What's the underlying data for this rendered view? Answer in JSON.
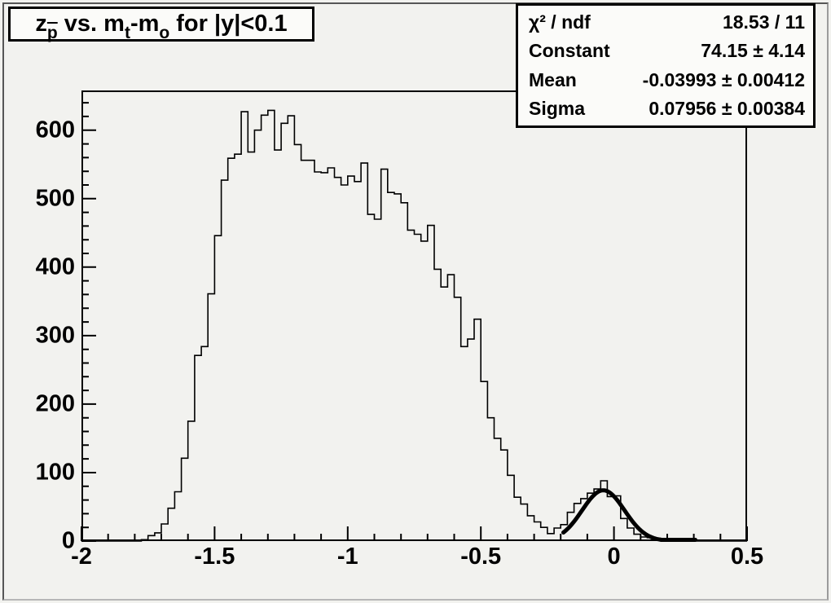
{
  "canvas": {
    "background": "#f2f2ef",
    "box_background": "#fbfbf9",
    "line_color": "#000000"
  },
  "title_box": {
    "text": "z_pbar vs. m_t-m_o for |y|<0.1",
    "segments": [
      {
        "text": "z"
      },
      {
        "text": "p",
        "sub": true,
        "overline": true
      },
      {
        "text": " vs. m"
      },
      {
        "text": "t",
        "sub": true
      },
      {
        "text": "-m"
      },
      {
        "text": "o",
        "sub": true
      },
      {
        "text": " for |y|<0.1"
      }
    ]
  },
  "stats_box": {
    "rows": [
      {
        "label": "χ² / ndf",
        "value": "18.53 / 11"
      },
      {
        "label": "Constant",
        "value": "74.15 ± 4.14"
      },
      {
        "label": "Mean",
        "value": "-0.03993 ± 0.00412"
      },
      {
        "label": "Sigma",
        "value": "0.07956 ± 0.00384"
      }
    ]
  },
  "chart_data": {
    "type": "histogram",
    "title": "z_pbar vs. m_t-m_o for |y|<0.1",
    "xlabel": "",
    "ylabel": "",
    "xlim": [
      -2,
      0.5
    ],
    "ylim": [
      0,
      658
    ],
    "grid": false,
    "bin_start": -2,
    "bin_width": 0.025,
    "values": [
      0,
      0,
      0,
      0,
      0,
      0,
      0,
      0,
      0,
      2,
      8,
      12,
      25,
      48,
      72,
      121,
      175,
      271,
      284,
      361,
      446,
      527,
      559,
      565,
      627,
      568,
      600,
      622,
      629,
      571,
      610,
      621,
      579,
      556,
      556,
      539,
      538,
      545,
      531,
      520,
      533,
      525,
      552,
      477,
      470,
      543,
      509,
      507,
      494,
      454,
      448,
      438,
      461,
      397,
      371,
      389,
      356,
      284,
      295,
      324,
      233,
      180,
      150,
      133,
      96,
      64,
      54,
      37,
      28,
      20,
      11,
      19,
      24,
      42,
      55,
      62,
      70,
      76,
      88,
      65,
      66,
      33,
      19,
      10,
      6,
      5,
      4,
      3,
      2,
      2,
      2,
      1,
      0,
      0,
      0,
      0,
      0,
      0,
      0,
      0
    ],
    "x_ticks": {
      "major_values": [
        -2,
        -1.5,
        -1,
        -0.5,
        0,
        0.5
      ],
      "labels": [
        "-2",
        "-1.5",
        "-1",
        "-0.5",
        "0",
        "0.5"
      ],
      "minor_step": 0.1
    },
    "y_ticks": {
      "major_values": [
        0,
        100,
        200,
        300,
        400,
        500,
        600
      ],
      "labels": [
        "0",
        "100",
        "200",
        "300",
        "400",
        "500",
        "600"
      ],
      "minor_step": 20
    },
    "fit": {
      "type": "gaussian",
      "chi2": 18.53,
      "ndf": 11,
      "constant": 74.15,
      "constant_err": 4.14,
      "mean": -0.03993,
      "mean_err": 0.00412,
      "sigma": 0.07956,
      "sigma_err": 0.00384,
      "draw_range": [
        -0.19,
        0.31
      ]
    }
  }
}
